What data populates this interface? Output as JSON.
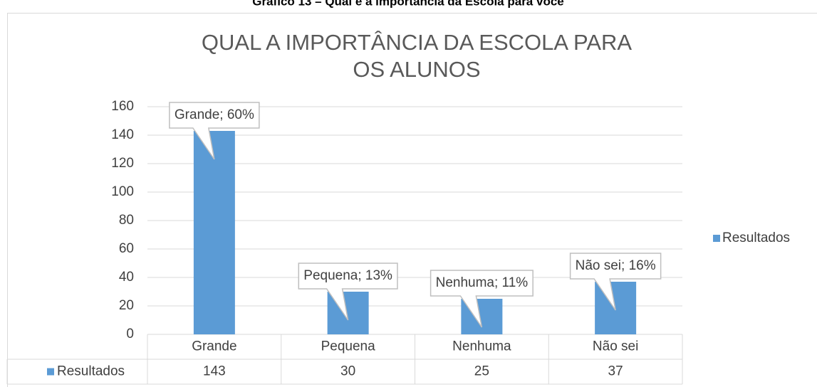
{
  "caption": "Gráfico 13 – Qual é a importância da Escola para você",
  "chart_data": {
    "type": "bar",
    "title": "QUAL A IMPORTÂNCIA DA ESCOLA PARA OS ALUNOS",
    "categories": [
      "Grande",
      "Pequena",
      "Nenhuma",
      "Não sei"
    ],
    "series": [
      {
        "name": "Resultados",
        "color": "#5b9bd5",
        "values": [
          143,
          30,
          25,
          37
        ]
      }
    ],
    "data_labels": [
      "Grande; 60%",
      "Pequena; 13%",
      "Nenhuma;  11%",
      "Não sei; 16%"
    ],
    "ylim": [
      0,
      160
    ],
    "yticks": [
      0,
      20,
      40,
      60,
      80,
      100,
      120,
      140,
      160
    ],
    "grid": true,
    "legend": "right",
    "data_table": true
  }
}
